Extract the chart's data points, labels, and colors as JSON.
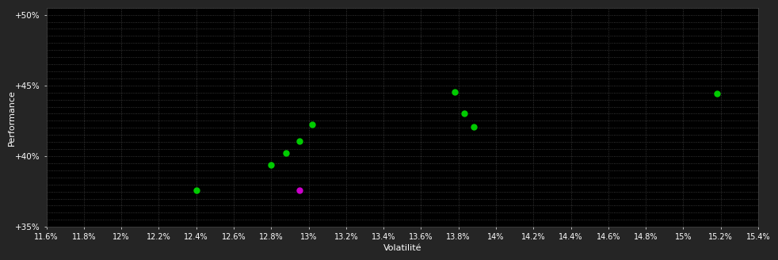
{
  "background_color": "#252525",
  "plot_bg_color": "#000000",
  "grid_color": "#444444",
  "text_color": "#ffffff",
  "xlabel": "Volatilité",
  "ylabel": "Performance",
  "xlim": [
    0.116,
    0.154
  ],
  "ylim": [
    0.35,
    0.505
  ],
  "xticks": [
    0.116,
    0.118,
    0.12,
    0.122,
    0.124,
    0.126,
    0.128,
    0.13,
    0.132,
    0.134,
    0.136,
    0.138,
    0.14,
    0.142,
    0.144,
    0.146,
    0.148,
    0.15,
    0.152,
    0.154
  ],
  "xtick_labels": [
    "11.6%",
    "11.8%",
    "12%",
    "12.2%",
    "12.4%",
    "12.6%",
    "12.8%",
    "13%",
    "13.2%",
    "13.4%",
    "13.6%",
    "13.8%",
    "14%",
    "14.2%",
    "14.4%",
    "14.6%",
    "14.8%",
    "15%",
    "15.2%",
    "15.4%"
  ],
  "yticks": [
    0.35,
    0.4,
    0.45,
    0.5
  ],
  "ytick_labels": [
    "+35%",
    "+40%",
    "+45%",
    "+50%"
  ],
  "green_points": [
    [
      0.124,
      0.376
    ],
    [
      0.128,
      0.394
    ],
    [
      0.1288,
      0.402
    ],
    [
      0.1295,
      0.4105
    ],
    [
      0.1302,
      0.4225
    ],
    [
      0.1378,
      0.4455
    ],
    [
      0.1383,
      0.4305
    ],
    [
      0.1388,
      0.4205
    ],
    [
      0.1518,
      0.4445
    ]
  ],
  "magenta_points": [
    [
      0.1295,
      0.376
    ]
  ],
  "dot_size": 25,
  "grid_linestyle": ":",
  "grid_linewidth": 0.6,
  "minor_grid": true
}
